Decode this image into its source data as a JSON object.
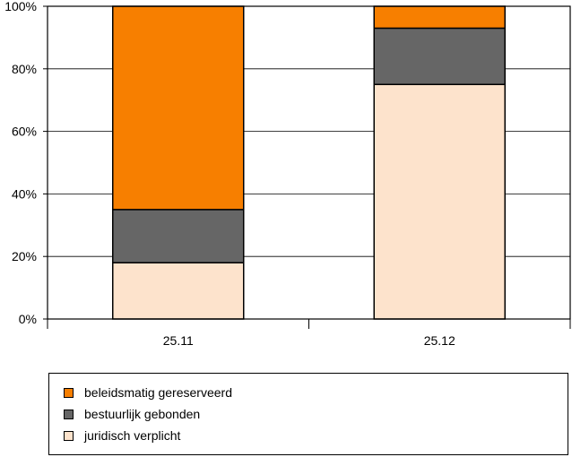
{
  "chart_data": {
    "type": "bar",
    "stacked": true,
    "categories": [
      "25.11",
      "25.12"
    ],
    "series": [
      {
        "name": "juridisch verplicht",
        "color": "#fde3cc",
        "values": [
          18,
          75
        ]
      },
      {
        "name": "bestuurlijk gebonden",
        "color": "#666666",
        "values": [
          17,
          18
        ]
      },
      {
        "name": "beleidsmatig gereserveerd",
        "color": "#f77f00",
        "values": [
          65,
          7
        ]
      }
    ],
    "yticks": [
      "0%",
      "20%",
      "40%",
      "60%",
      "80%",
      "100%"
    ],
    "ylim": [
      0,
      100
    ],
    "grid": true,
    "legend_position": "bottom"
  },
  "legend": {
    "items": [
      {
        "label": "beleidsmatig gereserveerd",
        "color": "#f77f00"
      },
      {
        "label": "bestuurlijk gebonden",
        "color": "#666666"
      },
      {
        "label": "juridisch verplicht",
        "color": "#fde3cc"
      }
    ]
  }
}
